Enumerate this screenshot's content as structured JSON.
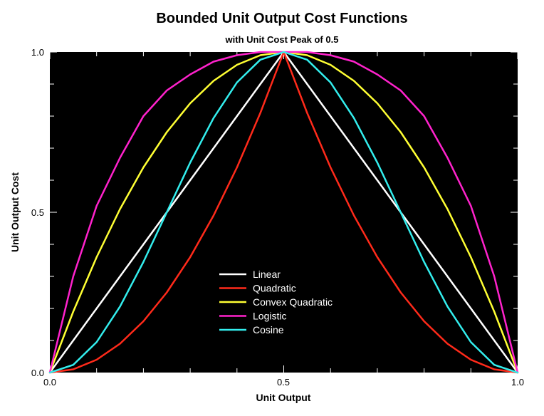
{
  "chart_data": {
    "type": "line",
    "title": "Bounded Unit Output Cost Functions",
    "subtitle": "with Unit Cost Peak of 0.5",
    "xlabel": "Unit Output",
    "ylabel": "Unit Output Cost",
    "xlim": [
      0,
      1
    ],
    "ylim": [
      0,
      1
    ],
    "x_ticks": [
      "0.0",
      "0.5",
      "1.0"
    ],
    "y_ticks": [
      "0.0",
      "0.5",
      "1.0"
    ],
    "plot_background": "#000000",
    "grid": false,
    "legend_position": "lower-center",
    "x": [
      0,
      0.05,
      0.1,
      0.15,
      0.2,
      0.25,
      0.3,
      0.35,
      0.4,
      0.45,
      0.5,
      0.55,
      0.6,
      0.65,
      0.7,
      0.75,
      0.8,
      0.85,
      0.9,
      0.95,
      1.0
    ],
    "series": [
      {
        "name": "Linear",
        "color": "#ffffff",
        "values": [
          0,
          0.1,
          0.2,
          0.3,
          0.4,
          0.5,
          0.6,
          0.7,
          0.8,
          0.9,
          1.0,
          0.9,
          0.8,
          0.7,
          0.6,
          0.5,
          0.4,
          0.3,
          0.2,
          0.1,
          0
        ]
      },
      {
        "name": "Quadratic",
        "color": "#ff2a1a",
        "values": [
          0,
          0.01,
          0.04,
          0.09,
          0.16,
          0.25,
          0.36,
          0.49,
          0.64,
          0.81,
          1.0,
          0.81,
          0.64,
          0.49,
          0.36,
          0.25,
          0.16,
          0.09,
          0.04,
          0.01,
          0
        ]
      },
      {
        "name": "Convex Quadratic",
        "color": "#ffff33",
        "values": [
          0,
          0.19,
          0.36,
          0.51,
          0.64,
          0.75,
          0.84,
          0.91,
          0.96,
          0.99,
          1.0,
          0.99,
          0.96,
          0.91,
          0.84,
          0.75,
          0.64,
          0.51,
          0.36,
          0.19,
          0
        ]
      },
      {
        "name": "Logistic",
        "color": "#ff22cc",
        "values": [
          0,
          0.3,
          0.52,
          0.67,
          0.8,
          0.88,
          0.93,
          0.97,
          0.99,
          1.0,
          1.0,
          1.0,
          0.99,
          0.97,
          0.93,
          0.88,
          0.8,
          0.67,
          0.52,
          0.3,
          0
        ]
      },
      {
        "name": "Cosine",
        "color": "#33eeee",
        "values": [
          0,
          0.024,
          0.095,
          0.206,
          0.345,
          0.5,
          0.655,
          0.794,
          0.905,
          0.976,
          1.0,
          0.976,
          0.905,
          0.794,
          0.655,
          0.5,
          0.345,
          0.206,
          0.095,
          0.024,
          0
        ]
      }
    ]
  }
}
